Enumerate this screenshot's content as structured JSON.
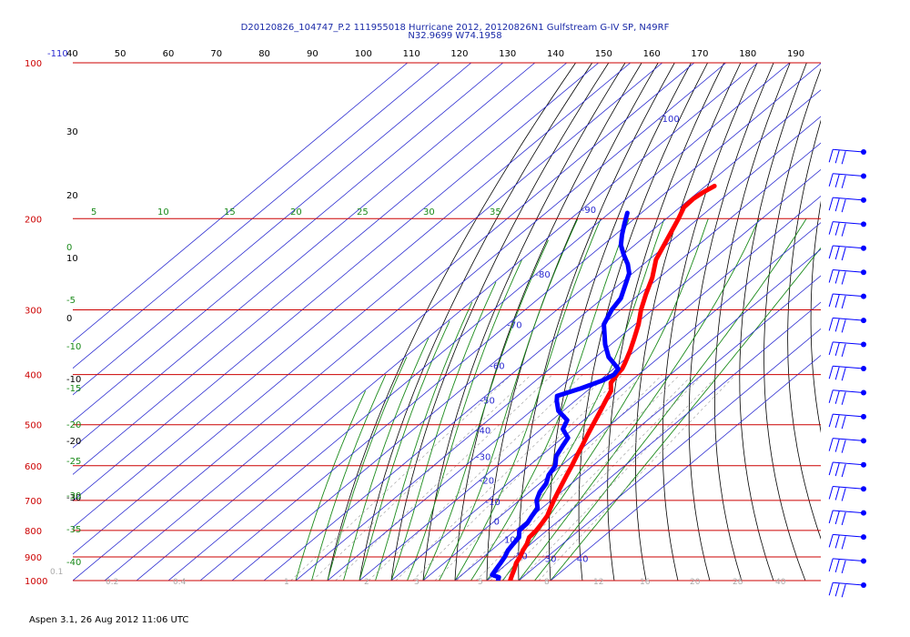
{
  "header": {
    "line1": "D20120826_104747_P.2 111955018 Hurricane 2012, 20120826N1 Gulfstream G-IV SP, N49RF",
    "line2": "N32.9699 W74.1958"
  },
  "footer": "Aspen 3.1, 26 Aug 2012  11:06 UTC",
  "colors": {
    "isobar": "#cc0000",
    "isotherm": "#2a2ad0",
    "dry_adiabat": "#000000",
    "moist_adiabat": "#1a8a1a",
    "mixing_ratio": "#999999",
    "temperature": "#ff0000",
    "dewpoint": "#0000ff",
    "wind": "#0000ff"
  },
  "chart_data": {
    "type": "line",
    "chart_kind": "skew-T log-P thermodynamic diagram",
    "y_axis": {
      "unit": "hPa",
      "scale": "log",
      "range": [
        100,
        1000
      ],
      "ticks": [
        100,
        200,
        300,
        400,
        500,
        600,
        700,
        800,
        900,
        1000
      ],
      "tick_labels": [
        "100",
        "200",
        "300",
        "400",
        "500",
        "600",
        "700",
        "800",
        "900",
        "1000"
      ]
    },
    "x_axis": {
      "unit": "°C",
      "range": [
        -110,
        40
      ],
      "skewed": true
    },
    "top_scale_labels": [
      "-110",
      "40",
      "50",
      "60",
      "70",
      "80",
      "90",
      "100",
      "110",
      "120",
      "130",
      "140",
      "150",
      "160",
      "170",
      "180",
      "190"
    ],
    "isotherm_labels": [
      "-100",
      "-90",
      "-80",
      "-70",
      "-60",
      "-50",
      "-40",
      "-30",
      "-20",
      "-10",
      "0",
      "10",
      "20",
      "30",
      "40"
    ],
    "moist_adiabat_labels": [
      "5",
      "10",
      "15",
      "20",
      "25",
      "30",
      "35"
    ],
    "left_column_labels": [
      "30",
      "20",
      "10",
      "0",
      "-10",
      "-20",
      "-30"
    ],
    "theta_w_labels": [
      "0",
      "-5",
      "-10",
      "-15",
      "-20",
      "-25",
      "-30",
      "-35",
      "-40"
    ],
    "mixing_ratio_labels": [
      "0.1",
      "0.2",
      "0.4",
      "1",
      "2",
      "3",
      "5",
      "8",
      "12",
      "16",
      "20",
      "28",
      "40"
    ],
    "series": [
      {
        "name": "Temperature",
        "points": [
          [
            1000,
            27.3
          ],
          [
            975,
            25.8
          ],
          [
            950,
            24.3
          ],
          [
            925,
            22.6
          ],
          [
            900,
            21.5
          ],
          [
            875,
            20.0
          ],
          [
            850,
            18.8
          ],
          [
            825,
            17.0
          ],
          [
            800,
            16.6
          ],
          [
            775,
            15.7
          ],
          [
            750,
            14.6
          ],
          [
            725,
            12.7
          ],
          [
            700,
            10.8
          ],
          [
            675,
            9.0
          ],
          [
            650,
            7.2
          ],
          [
            625,
            5.3
          ],
          [
            600,
            3.4
          ],
          [
            575,
            1.3
          ],
          [
            550,
            -0.8
          ],
          [
            525,
            -3.1
          ],
          [
            500,
            -5.4
          ],
          [
            475,
            -7.8
          ],
          [
            450,
            -10.4
          ],
          [
            430,
            -12.5
          ],
          [
            415,
            -15.6
          ],
          [
            405,
            -16.3
          ],
          [
            400,
            -16.8
          ],
          [
            390,
            -17.3
          ],
          [
            380,
            -18.6
          ],
          [
            360,
            -21.6
          ],
          [
            340,
            -25.1
          ],
          [
            320,
            -28.9
          ],
          [
            300,
            -33.6
          ],
          [
            280,
            -37.9
          ],
          [
            260,
            -42.2
          ],
          [
            240,
            -47.8
          ],
          [
            220,
            -51.8
          ],
          [
            200,
            -56.2
          ],
          [
            190,
            -58.8
          ],
          [
            183,
            -59.0
          ],
          [
            178,
            -58.4
          ],
          [
            173,
            -57.2
          ]
        ]
      },
      {
        "name": "Dewpoint",
        "points": [
          [
            1000,
            23.5
          ],
          [
            985,
            22.5
          ],
          [
            975,
            19.5
          ],
          [
            950,
            18.6
          ],
          [
            925,
            17.7
          ],
          [
            900,
            16.7
          ],
          [
            875,
            15.3
          ],
          [
            850,
            14.5
          ],
          [
            825,
            13.8
          ],
          [
            800,
            11.3
          ],
          [
            775,
            11.1
          ],
          [
            750,
            9.8
          ],
          [
            725,
            8.7
          ],
          [
            700,
            5.4
          ],
          [
            675,
            3.3
          ],
          [
            650,
            2.1
          ],
          [
            625,
            -0.4
          ],
          [
            600,
            -1.8
          ],
          [
            575,
            -5.1
          ],
          [
            550,
            -6.9
          ],
          [
            530,
            -8.3
          ],
          [
            510,
            -13.2
          ],
          [
            490,
            -15.2
          ],
          [
            470,
            -21.5
          ],
          [
            450,
            -25.7
          ],
          [
            440,
            -27.5
          ],
          [
            425,
            -22.8
          ],
          [
            410,
            -18.9
          ],
          [
            400,
            -17.7
          ],
          [
            390,
            -18.5
          ],
          [
            370,
            -26.0
          ],
          [
            350,
            -31.8
          ],
          [
            320,
            -39.8
          ],
          [
            300,
            -42.8
          ],
          [
            285,
            -44.3
          ],
          [
            270,
            -47.6
          ],
          [
            255,
            -51.1
          ],
          [
            245,
            -54.9
          ],
          [
            235,
            -59.7
          ],
          [
            225,
            -64.3
          ],
          [
            215,
            -67.8
          ],
          [
            205,
            -71.1
          ],
          [
            195,
            -74.4
          ]
        ]
      }
    ],
    "wind_profile_levels": 19
  }
}
